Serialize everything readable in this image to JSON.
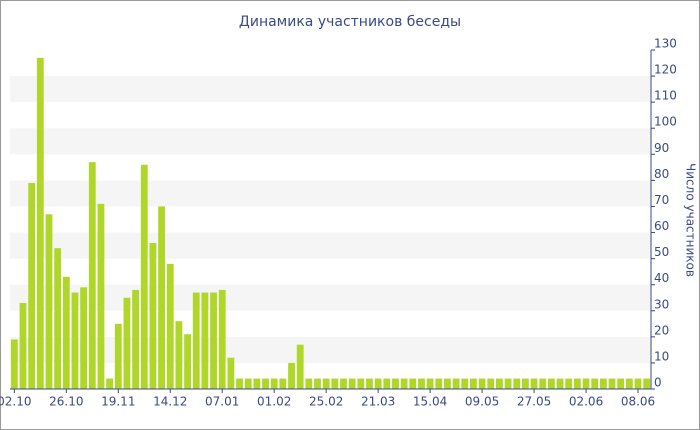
{
  "chart_data": {
    "type": "bar",
    "title": "Динамика участников беседы",
    "y_label": "Число участников",
    "color": "#b0d62a",
    "categories": [
      "02.10",
      null,
      null,
      null,
      null,
      null,
      "26.10",
      null,
      null,
      null,
      null,
      null,
      "19.11",
      null,
      null,
      null,
      null,
      null,
      "14.12",
      null,
      null,
      null,
      null,
      null,
      "07.01",
      null,
      null,
      null,
      null,
      null,
      "01.02",
      null,
      null,
      null,
      null,
      null,
      "25.02",
      null,
      null,
      null,
      null,
      null,
      "21.03",
      null,
      null,
      null,
      null,
      null,
      "15.04",
      null,
      null,
      null,
      null,
      null,
      "09.05",
      null,
      null,
      null,
      null,
      null,
      "27.05",
      null,
      null,
      null,
      null,
      null,
      "02.06",
      null,
      null,
      null,
      null,
      null,
      "08.06",
      null
    ],
    "values": [
      19,
      33,
      79,
      127,
      67,
      54,
      43,
      37,
      39,
      87,
      71,
      4,
      25,
      35,
      38,
      86,
      56,
      70,
      48,
      26,
      21,
      37,
      37,
      37,
      38,
      12,
      4,
      4,
      4,
      4,
      4,
      4,
      10,
      17,
      4,
      4,
      4,
      4,
      4,
      4,
      4,
      4,
      4,
      4,
      4,
      4,
      4,
      4,
      4,
      4,
      4,
      4,
      4,
      4,
      4,
      4,
      4,
      4,
      4,
      4,
      4,
      4,
      4,
      4,
      4,
      4,
      4,
      4,
      4,
      4,
      4,
      4,
      4,
      4
    ],
    "ylim": [
      0,
      130
    ],
    "yticks": [
      0,
      10,
      20,
      30,
      40,
      50,
      60,
      70,
      80,
      90,
      100,
      110,
      120,
      130
    ],
    "grid": true
  }
}
